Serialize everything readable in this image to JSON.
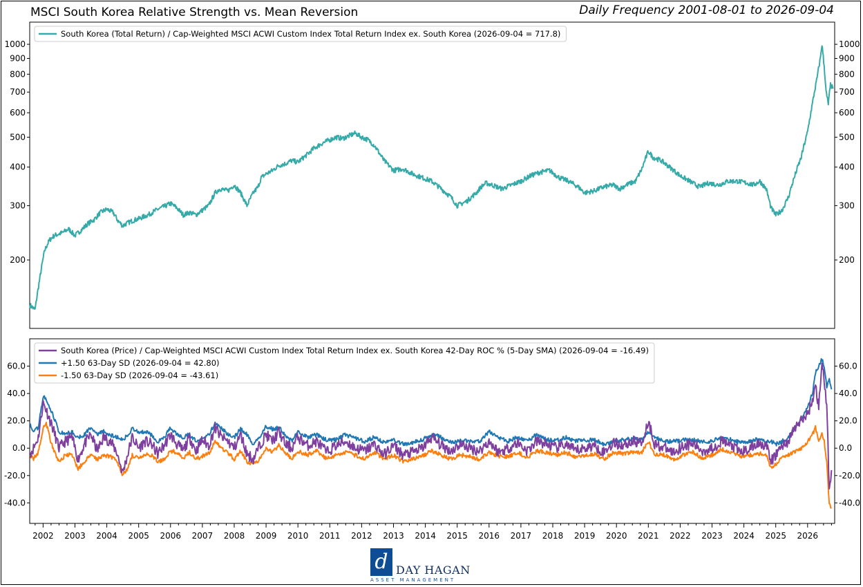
{
  "header": {
    "title": "MSCI South Korea Relative Strength vs. Mean Reversion",
    "subtitle": "Daily Frequency 2001-08-01 to 2026-09-04"
  },
  "logo": {
    "mark": "d",
    "name": "DAY HAGAN",
    "tagline": "ASSET MANAGEMENT"
  },
  "colors": {
    "relative_strength": "#35aaa8",
    "roc": "#7e3f9e",
    "upper_band": "#1f77b4",
    "lower_band": "#ff7f0e"
  },
  "chart_data": [
    {
      "type": "line",
      "yscale": "log",
      "xlim": [
        2001.58,
        2026.85
      ],
      "ylim": [
        120,
        1180
      ],
      "yticks": [
        200,
        300,
        400,
        500,
        600,
        700,
        800,
        900,
        1000
      ],
      "ytick_labels": [
        "200",
        "300",
        "400",
        "500",
        "600",
        "700",
        "800",
        "900",
        "1000"
      ],
      "legend_position": "upper-left",
      "series": [
        {
          "name": "South Korea (Total Return) / Cap-Weighted MSCI ACWI Custom Index Total Return Index ex. South Korea (2026-09-04 = 717.8)",
          "color": "#35aaa8",
          "x": [
            2001.58,
            2001.75,
            2001.9,
            2002.05,
            2002.2,
            2002.35,
            2002.6,
            2002.8,
            2003.0,
            2003.2,
            2003.4,
            2003.6,
            2003.8,
            2004.0,
            2004.2,
            2004.35,
            2004.5,
            2004.6,
            2004.8,
            2005.0,
            2005.3,
            2005.6,
            2005.8,
            2006.0,
            2006.2,
            2006.4,
            2006.6,
            2006.8,
            2007.0,
            2007.2,
            2007.4,
            2007.55,
            2007.8,
            2008.0,
            2008.2,
            2008.4,
            2008.6,
            2008.75,
            2008.85,
            2009.0,
            2009.2,
            2009.4,
            2009.6,
            2009.8,
            2010.0,
            2010.3,
            2010.5,
            2010.8,
            2011.0,
            2011.2,
            2011.4,
            2011.6,
            2011.8,
            2012.0,
            2012.2,
            2012.4,
            2012.7,
            2013.0,
            2013.3,
            2013.6,
            2013.9,
            2014.2,
            2014.5,
            2014.8,
            2015.0,
            2015.3,
            2015.6,
            2015.75,
            2015.9,
            2016.1,
            2016.4,
            2016.7,
            2017.0,
            2017.3,
            2017.6,
            2017.9,
            2018.2,
            2018.5,
            2018.8,
            2019.0,
            2019.3,
            2019.6,
            2019.9,
            2020.1,
            2020.3,
            2020.6,
            2020.8,
            2021.0,
            2021.15,
            2021.4,
            2021.6,
            2021.8,
            2022.0,
            2022.3,
            2022.6,
            2022.9,
            2023.2,
            2023.5,
            2023.8,
            2024.1,
            2024.3,
            2024.5,
            2024.7,
            2024.85,
            2025.0,
            2025.2,
            2025.4,
            2025.6,
            2025.8,
            2026.0,
            2026.15,
            2026.3,
            2026.4,
            2026.45,
            2026.52,
            2026.58,
            2026.65,
            2026.72,
            2026.8
          ],
          "values": [
            143,
            138,
            175,
            215,
            232,
            240,
            245,
            252,
            240,
            250,
            262,
            270,
            285,
            292,
            285,
            268,
            258,
            262,
            268,
            272,
            280,
            292,
            298,
            305,
            295,
            280,
            285,
            280,
            290,
            300,
            330,
            340,
            335,
            350,
            330,
            300,
            330,
            345,
            370,
            380,
            390,
            405,
            410,
            420,
            415,
            440,
            460,
            480,
            490,
            500,
            495,
            505,
            515,
            500,
            490,
            470,
            420,
            390,
            395,
            380,
            370,
            360,
            340,
            320,
            300,
            310,
            330,
            345,
            355,
            350,
            340,
            350,
            360,
            375,
            385,
            390,
            370,
            360,
            345,
            330,
            335,
            345,
            350,
            340,
            350,
            360,
            395,
            450,
            430,
            420,
            405,
            390,
            375,
            360,
            345,
            355,
            350,
            360,
            360,
            355,
            350,
            360,
            340,
            295,
            280,
            290,
            320,
            375,
            430,
            520,
            640,
            780,
            900,
            1000,
            850,
            700,
            640,
            740,
            718
          ]
        }
      ]
    },
    {
      "type": "line",
      "xlim": [
        2001.58,
        2026.85
      ],
      "ylim": [
        -55,
        80
      ],
      "yticks": [
        -40,
        -20,
        0,
        20,
        40,
        60
      ],
      "ytick_labels": [
        "-40.0",
        "-20.0",
        "0.0",
        "20.0",
        "40.0",
        "60.0"
      ],
      "x_tick_labels": [
        "2002",
        "2003",
        "2004",
        "2005",
        "2006",
        "2007",
        "2008",
        "2009",
        "2010",
        "2011",
        "2012",
        "2013",
        "2014",
        "2015",
        "2016",
        "2017",
        "2018",
        "2019",
        "2020",
        "2021",
        "2022",
        "2023",
        "2024",
        "2025",
        "2026"
      ],
      "legend_position": "upper-left",
      "x": [
        2001.6,
        2001.7,
        2001.85,
        2002.0,
        2002.1,
        2002.3,
        2002.5,
        2002.7,
        2002.9,
        2003.1,
        2003.3,
        2003.5,
        2003.7,
        2003.9,
        2004.1,
        2004.3,
        2004.5,
        2004.65,
        2004.8,
        2005.0,
        2005.2,
        2005.4,
        2005.6,
        2005.8,
        2006.0,
        2006.2,
        2006.4,
        2006.6,
        2006.8,
        2007.0,
        2007.2,
        2007.4,
        2007.6,
        2007.8,
        2008.0,
        2008.2,
        2008.4,
        2008.6,
        2008.8,
        2009.0,
        2009.2,
        2009.4,
        2009.6,
        2009.8,
        2010.0,
        2010.3,
        2010.6,
        2010.9,
        2011.2,
        2011.5,
        2011.8,
        2012.1,
        2012.4,
        2012.7,
        2013.0,
        2013.3,
        2013.6,
        2013.9,
        2014.2,
        2014.5,
        2014.8,
        2015.1,
        2015.4,
        2015.7,
        2016.0,
        2016.3,
        2016.6,
        2016.9,
        2017.2,
        2017.5,
        2017.8,
        2018.1,
        2018.4,
        2018.7,
        2019.0,
        2019.3,
        2019.6,
        2019.9,
        2020.2,
        2020.5,
        2020.8,
        2021.0,
        2021.2,
        2021.5,
        2021.8,
        2022.1,
        2022.4,
        2022.7,
        2023.0,
        2023.3,
        2023.6,
        2023.9,
        2024.2,
        2024.5,
        2024.7,
        2024.85,
        2025.0,
        2025.2,
        2025.4,
        2025.6,
        2025.8,
        2026.0,
        2026.15,
        2026.25,
        2026.35,
        2026.45,
        2026.52,
        2026.6,
        2026.68,
        2026.75
      ],
      "series": [
        {
          "name": "South Korea (Price) / Cap-Weighted MSCI ACWI Custom Index Total Return Index ex. South Korea 42-Day ROC % (5-Day SMA) (2026-09-04 = -16.49)",
          "color": "#7e3f9e",
          "values": [
            -3,
            0,
            8,
            33,
            28,
            15,
            0,
            5,
            8,
            -8,
            3,
            10,
            -2,
            8,
            5,
            -2,
            -18,
            -5,
            8,
            0,
            5,
            3,
            -4,
            2,
            10,
            3,
            -2,
            8,
            -2,
            6,
            2,
            15,
            8,
            5,
            0,
            10,
            -4,
            -8,
            2,
            10,
            5,
            12,
            3,
            0,
            8,
            2,
            5,
            -3,
            2,
            5,
            0,
            -2,
            3,
            -5,
            2,
            -5,
            -3,
            0,
            8,
            2,
            -2,
            3,
            0,
            -2,
            5,
            -3,
            0,
            4,
            -2,
            5,
            3,
            0,
            3,
            -2,
            0,
            2,
            -3,
            4,
            2,
            5,
            4,
            20,
            3,
            0,
            -3,
            2,
            3,
            -2,
            0,
            5,
            2,
            -3,
            0,
            4,
            2,
            -10,
            -5,
            2,
            5,
            15,
            20,
            25,
            35,
            45,
            30,
            65,
            48,
            30,
            -28,
            -16
          ]
        },
        {
          "name": "+1.50 63-Day SD (2026-09-04 = 42.80)",
          "color": "#1f77b4",
          "values": [
            18,
            12,
            15,
            38,
            35,
            25,
            12,
            10,
            12,
            8,
            10,
            15,
            10,
            12,
            10,
            8,
            6,
            10,
            14,
            12,
            12,
            10,
            5,
            8,
            15,
            10,
            8,
            10,
            5,
            8,
            10,
            18,
            15,
            10,
            8,
            14,
            10,
            3,
            8,
            16,
            14,
            15,
            10,
            5,
            12,
            8,
            10,
            6,
            6,
            10,
            7,
            5,
            8,
            4,
            6,
            3,
            4,
            6,
            10,
            8,
            4,
            6,
            5,
            5,
            12,
            8,
            5,
            8,
            5,
            10,
            6,
            6,
            8,
            5,
            6,
            6,
            3,
            5,
            6,
            7,
            6,
            12,
            8,
            5,
            5,
            6,
            6,
            5,
            5,
            8,
            6,
            4,
            5,
            7,
            5,
            5,
            3,
            5,
            8,
            15,
            20,
            30,
            40,
            55,
            60,
            65,
            60,
            45,
            50,
            43
          ]
        },
        {
          "name": "-1.50 63-Day SD (2026-09-04 = -43.61)",
          "color": "#ff7f0e",
          "values": [
            -5,
            -8,
            -3,
            15,
            18,
            0,
            -10,
            -5,
            -5,
            -15,
            -10,
            -5,
            -8,
            -5,
            -6,
            -8,
            -20,
            -15,
            -5,
            -8,
            -5,
            -5,
            -10,
            -8,
            -2,
            -3,
            -8,
            -3,
            -8,
            -6,
            -4,
            5,
            0,
            -3,
            -8,
            -2,
            -10,
            -12,
            -8,
            0,
            -3,
            2,
            -3,
            -8,
            -2,
            -5,
            -2,
            -8,
            -5,
            -3,
            -5,
            -8,
            -3,
            -8,
            -5,
            -10,
            -8,
            -6,
            -2,
            -5,
            -8,
            -5,
            -6,
            -8,
            -3,
            -6,
            -6,
            -3,
            -7,
            -2,
            -3,
            -5,
            -3,
            -6,
            -5,
            -4,
            -8,
            -3,
            -4,
            -3,
            -3,
            5,
            -5,
            -5,
            -8,
            -5,
            -3,
            -7,
            -5,
            -1,
            -3,
            -6,
            -5,
            -4,
            -5,
            -14,
            -12,
            -7,
            -5,
            -3,
            0,
            5,
            10,
            15,
            5,
            10,
            5,
            -10,
            -40,
            -44
          ]
        }
      ]
    }
  ]
}
